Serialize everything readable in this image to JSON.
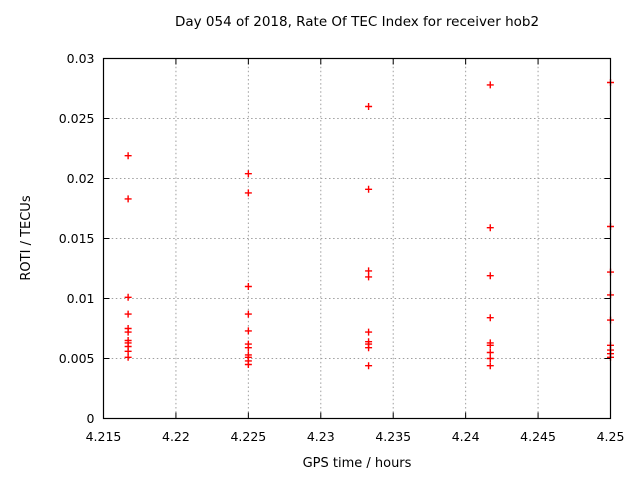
{
  "chart_data": {
    "type": "scatter",
    "title": "Day 054 of 2018, Rate Of TEC Index for receiver hob2",
    "xlabel": "GPS time / hours",
    "ylabel": "ROTI / TECUs",
    "xlim": [
      4.215,
      4.25
    ],
    "ylim": [
      0,
      0.03
    ],
    "grid": true,
    "legend": "none",
    "marker": "plus",
    "marker_color": "#ff0000",
    "grid_color": "#9e9e9e",
    "border_color": "#000000",
    "xticks": {
      "values": [
        4.215,
        4.22,
        4.225,
        4.23,
        4.235,
        4.24,
        4.245,
        4.25
      ],
      "labels": [
        "4.215",
        "4.22",
        "4.225",
        "4.23",
        "4.235",
        "4.24",
        "4.245",
        "4.25"
      ]
    },
    "yticks": {
      "values": [
        0,
        0.005,
        0.01,
        0.015,
        0.02,
        0.025,
        0.03
      ],
      "labels": [
        "0",
        "0.005",
        "0.01",
        "0.015",
        "0.02",
        "0.025",
        "0.03"
      ]
    },
    "series": [
      {
        "name": "ROTI",
        "points": [
          [
            4.2167,
            0.0219
          ],
          [
            4.2167,
            0.0183
          ],
          [
            4.2167,
            0.0101
          ],
          [
            4.2167,
            0.0087
          ],
          [
            4.2167,
            0.0075
          ],
          [
            4.2167,
            0.0072
          ],
          [
            4.2167,
            0.0065
          ],
          [
            4.2167,
            0.0063
          ],
          [
            4.2167,
            0.006
          ],
          [
            4.2167,
            0.0056
          ],
          [
            4.2167,
            0.0051
          ],
          [
            4.225,
            0.0204
          ],
          [
            4.225,
            0.0188
          ],
          [
            4.225,
            0.011
          ],
          [
            4.225,
            0.0087
          ],
          [
            4.225,
            0.0073
          ],
          [
            4.225,
            0.0062
          ],
          [
            4.225,
            0.0059
          ],
          [
            4.225,
            0.0053
          ],
          [
            4.225,
            0.0051
          ],
          [
            4.225,
            0.0048
          ],
          [
            4.225,
            0.0045
          ],
          [
            4.2333,
            0.026
          ],
          [
            4.2333,
            0.0191
          ],
          [
            4.2333,
            0.0123
          ],
          [
            4.2333,
            0.0118
          ],
          [
            4.2333,
            0.0072
          ],
          [
            4.2333,
            0.0064
          ],
          [
            4.2333,
            0.0062
          ],
          [
            4.2333,
            0.0059
          ],
          [
            4.2333,
            0.0044
          ],
          [
            4.2417,
            0.0278
          ],
          [
            4.2417,
            0.0159
          ],
          [
            4.2417,
            0.0119
          ],
          [
            4.2417,
            0.0084
          ],
          [
            4.2417,
            0.0063
          ],
          [
            4.2417,
            0.0061
          ],
          [
            4.2417,
            0.0055
          ],
          [
            4.2417,
            0.005
          ],
          [
            4.2417,
            0.0044
          ],
          [
            4.25,
            0.028
          ],
          [
            4.25,
            0.016
          ],
          [
            4.25,
            0.0122
          ],
          [
            4.25,
            0.0103
          ],
          [
            4.25,
            0.0082
          ],
          [
            4.25,
            0.0061
          ],
          [
            4.25,
            0.0057
          ],
          [
            4.25,
            0.0054
          ],
          [
            4.25,
            0.0051
          ]
        ]
      }
    ]
  }
}
